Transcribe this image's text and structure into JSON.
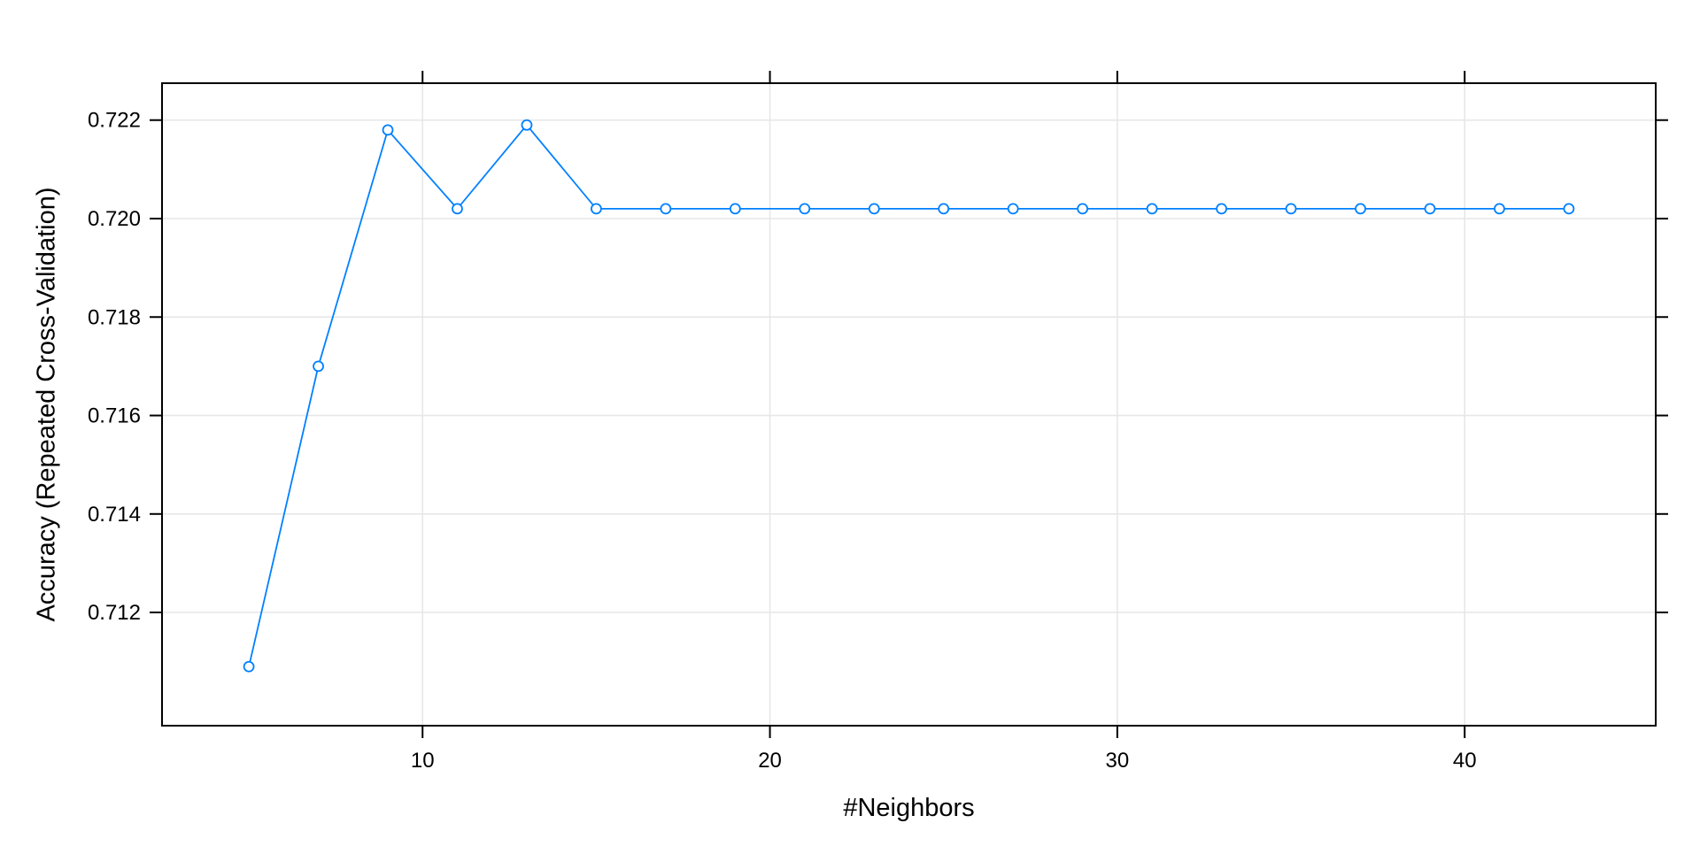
{
  "chart_data": {
    "type": "line",
    "title": "",
    "xlabel": "#Neighbors",
    "ylabel": "Accuracy (Repeated Cross-Validation)",
    "xlim": [
      2.5,
      45.5
    ],
    "ylim": [
      0.7097,
      0.72275
    ],
    "x_ticks": [
      10,
      20,
      30,
      40
    ],
    "x_tick_labels": [
      "10",
      "20",
      "30",
      "40"
    ],
    "y_ticks": [
      0.712,
      0.714,
      0.716,
      0.718,
      0.72,
      0.722
    ],
    "y_tick_labels": [
      "0.712",
      "0.714",
      "0.716",
      "0.718",
      "0.720",
      "0.722"
    ],
    "grid": true,
    "series": [
      {
        "x": [
          5,
          7,
          9,
          11,
          13,
          15,
          17,
          19,
          21,
          23,
          25,
          27,
          29,
          31,
          33,
          35,
          37,
          39,
          41,
          43
        ],
        "values": [
          0.7109,
          0.717,
          0.7218,
          0.7202,
          0.7219,
          0.7202,
          0.7202,
          0.7202,
          0.7202,
          0.7202,
          0.7202,
          0.7202,
          0.7202,
          0.7202,
          0.7202,
          0.7202,
          0.7202,
          0.7202,
          0.7202,
          0.7202
        ]
      }
    ],
    "colors": {
      "series": "#0080ff",
      "grid": "#e6e6e6",
      "axis": "#000000"
    }
  }
}
